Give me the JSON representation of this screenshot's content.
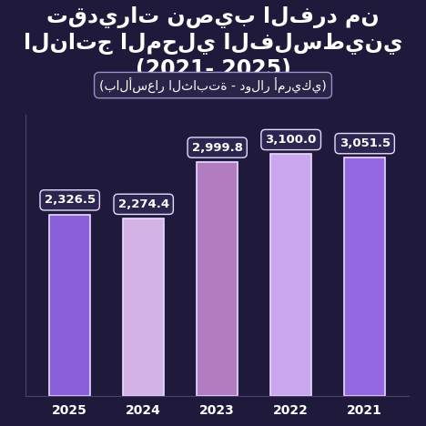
{
  "chart_data": {
    "type": "bar",
    "title": "تقديرات نصيب الفرد من الناتج المحلي الفلسطيني (2021- 2025)",
    "subtitle": "(بالأسعار الثابتة - دولار أمريكي)",
    "categories": [
      "2025",
      "2024",
      "2023",
      "2022",
      "2021"
    ],
    "values": [
      2326.5,
      2274.4,
      2999.8,
      3100.0,
      3051.5
    ],
    "value_labels": [
      "2,326.5",
      "2,274.4",
      "2,999.8",
      "3,100.0",
      "3,051.5"
    ],
    "colors": [
      "#8a5fd8",
      "#d4b2e6",
      "#b47cc0",
      "#c9a6ee",
      "#9466e0"
    ],
    "ylim": [
      0,
      3600
    ],
    "yticks": [],
    "grid": false,
    "data_labels": true,
    "tick_labels": "x"
  }
}
